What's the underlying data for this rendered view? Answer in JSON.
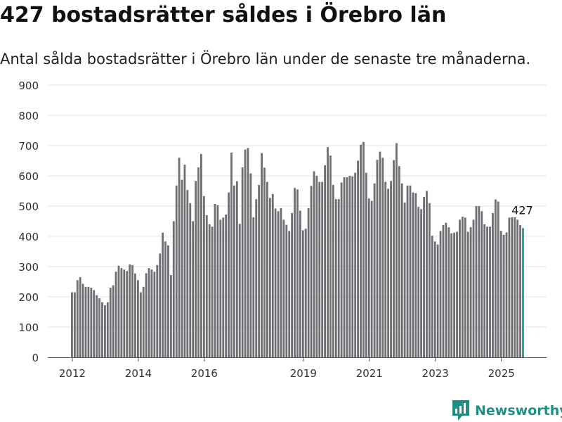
{
  "chart_data": {
    "type": "bar",
    "title": "427 bostadsrätter såldes i Örebro län",
    "subtitle": "Antal sålda bostadsrätter i Örebro län under de senaste tre månaderna.",
    "xlabel": "",
    "ylabel": "",
    "ylim": [
      0,
      900
    ],
    "yticks": [
      0,
      100,
      200,
      300,
      400,
      500,
      600,
      700,
      800,
      900
    ],
    "x_tick_labels": [
      "2012",
      "2014",
      "2016",
      "2019",
      "2021",
      "2023",
      "2025"
    ],
    "grid": true,
    "legend": "none",
    "highlight_label": "427",
    "bar_color": "#6f6e73",
    "highlight_color": "#1e9e8f",
    "x_start": "2012-01",
    "x_end": "2025-07",
    "values": [
      215,
      215,
      255,
      265,
      243,
      233,
      233,
      230,
      222,
      205,
      195,
      182,
      172,
      182,
      230,
      238,
      283,
      303,
      295,
      290,
      285,
      307,
      305,
      277,
      255,
      215,
      233,
      278,
      295,
      290,
      283,
      305,
      343,
      412,
      383,
      370,
      272,
      450,
      568,
      660,
      587,
      637,
      553,
      510,
      450,
      583,
      628,
      672,
      533,
      470,
      440,
      432,
      507,
      503,
      455,
      462,
      472,
      545,
      677,
      568,
      582,
      441,
      628,
      687,
      692,
      608,
      463,
      523,
      570,
      675,
      627,
      580,
      527,
      540,
      492,
      483,
      493,
      455,
      438,
      418,
      477,
      560,
      555,
      485,
      420,
      425,
      493,
      567,
      615,
      600,
      580,
      580,
      635,
      695,
      667,
      570,
      523,
      523,
      578,
      595,
      595,
      600,
      598,
      610,
      650,
      703,
      712,
      610,
      525,
      517,
      575,
      653,
      680,
      660,
      580,
      557,
      583,
      652,
      708,
      632,
      575,
      512,
      568,
      568,
      545,
      543,
      497,
      490,
      530,
      550,
      510,
      402,
      383,
      373,
      418,
      437,
      445,
      430,
      410,
      412,
      415,
      455,
      465,
      462,
      415,
      430,
      455,
      500,
      500,
      483,
      440,
      432,
      432,
      477,
      522,
      515,
      418,
      405,
      413,
      462,
      463,
      463,
      455,
      437,
      427
    ]
  },
  "brand": {
    "name": "Newsworthy",
    "icon": "newsworthy-logo-icon",
    "color": "#1e8f83"
  }
}
